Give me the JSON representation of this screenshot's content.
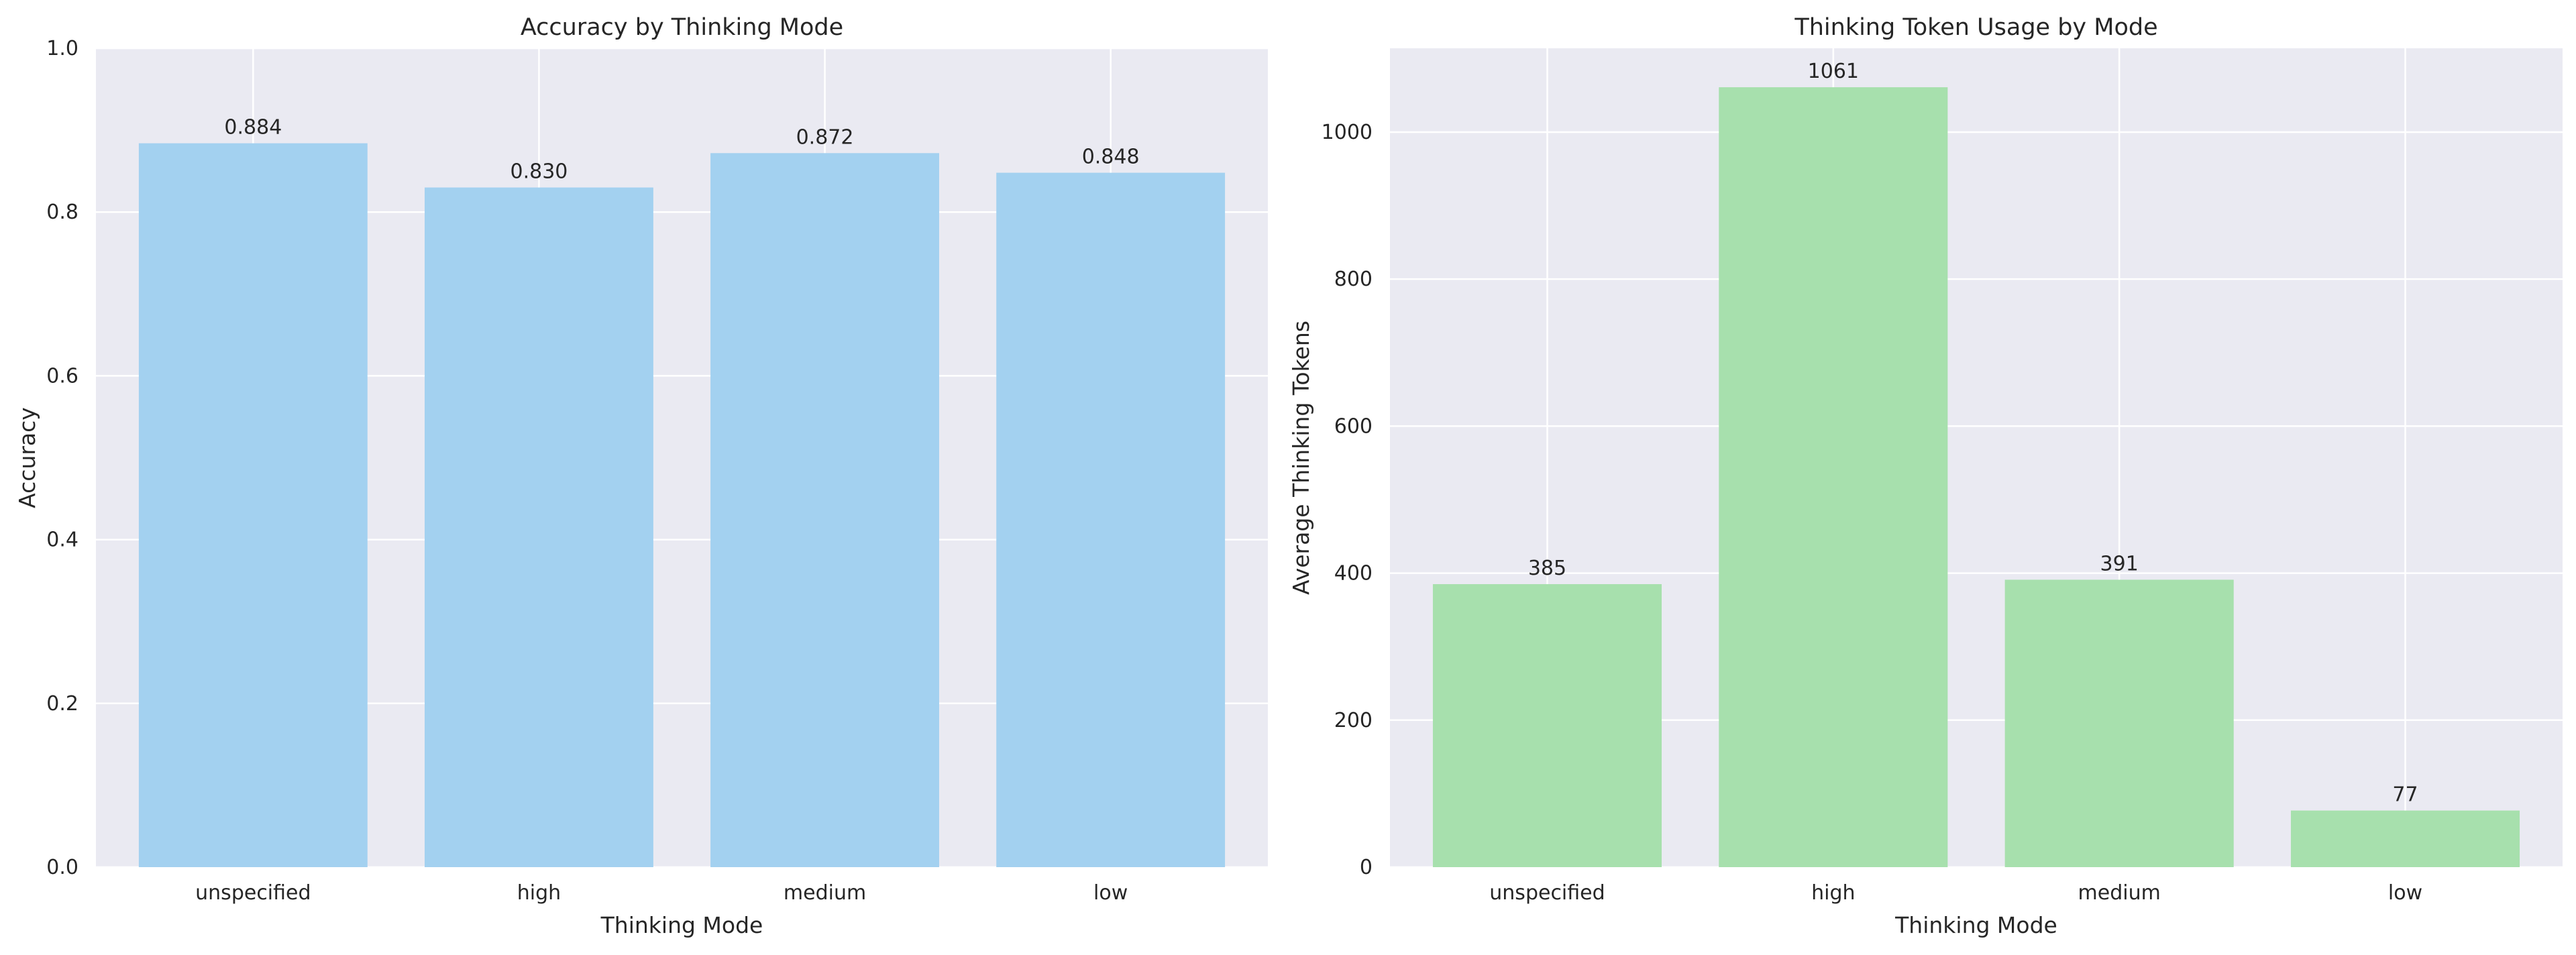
{
  "chart_data": [
    {
      "type": "bar",
      "title": "Accuracy by Thinking Mode",
      "xlabel": "Thinking Mode",
      "ylabel": "Accuracy",
      "categories": [
        "unspecified",
        "high",
        "medium",
        "low"
      ],
      "values": [
        0.884,
        0.83,
        0.872,
        0.848
      ],
      "value_labels": [
        "0.884",
        "0.830",
        "0.872",
        "0.848"
      ],
      "ylim": [
        0,
        1.0
      ],
      "yticks": [
        0.0,
        0.2,
        0.4,
        0.6,
        0.8,
        1.0
      ],
      "ytick_labels": [
        "0.0",
        "0.2",
        "0.4",
        "0.6",
        "0.8",
        "1.0"
      ],
      "grid": true,
      "bar_color": "#a3d1f0"
    },
    {
      "type": "bar",
      "title": "Thinking Token Usage by Mode",
      "xlabel": "Thinking Mode",
      "ylabel": "Average Thinking Tokens",
      "categories": [
        "unspecified",
        "high",
        "medium",
        "low"
      ],
      "values": [
        385,
        1061,
        391,
        77
      ],
      "value_labels": [
        "385",
        "1061",
        "391",
        "77"
      ],
      "ylim": [
        0,
        1114
      ],
      "yticks": [
        0,
        200,
        400,
        600,
        800,
        1000
      ],
      "ytick_labels": [
        "0",
        "200",
        "400",
        "600",
        "800",
        "1000"
      ],
      "grid": true,
      "bar_color": "#a7e0ad"
    }
  ]
}
